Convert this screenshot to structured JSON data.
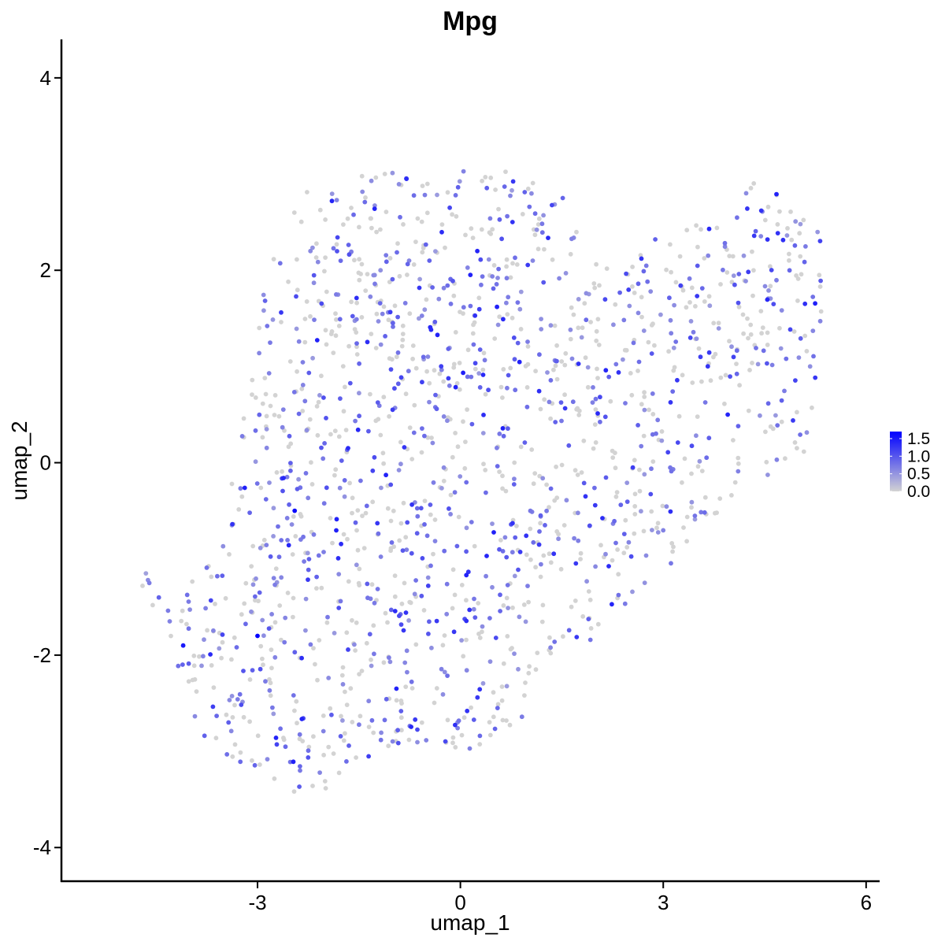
{
  "chart_data": {
    "type": "scatter",
    "title": "Mpg",
    "xlabel": "umap_1",
    "ylabel": "umap_2",
    "xlim": [
      -5.9,
      6.2
    ],
    "ylim": [
      -4.35,
      4.4
    ],
    "x_ticks": [
      -3,
      0,
      3,
      6
    ],
    "x_tick_labels": [
      "-3",
      "0",
      "3",
      "6"
    ],
    "y_ticks": [
      -4,
      -2,
      0,
      2,
      4
    ],
    "y_tick_labels": [
      "-4",
      "-2",
      "0",
      "2",
      "4"
    ],
    "grid": false,
    "point_count_estimate": 1600,
    "color_scale": {
      "low": "#d3d3d3",
      "high": "#0000ff",
      "min": 0.0,
      "max": 1.7,
      "ticks": [
        0.0,
        0.5,
        1.0,
        1.5
      ],
      "tick_labels": [
        "0.0",
        "0.5",
        "1.0",
        "1.5"
      ],
      "legend_position": "right"
    },
    "highlighted_points": [
      {
        "x": -3.0,
        "y": -1.8,
        "value": 1.7
      },
      {
        "x": -2.45,
        "y": -0.5,
        "value": 1.6
      },
      {
        "x": -4.1,
        "y": -1.9,
        "value": 1.5
      },
      {
        "x": -1.9,
        "y": 2.72,
        "value": 1.4
      },
      {
        "x": 0.25,
        "y": 2.2,
        "value": 1.4
      },
      {
        "x": 0.1,
        "y": -2.58,
        "value": 1.3
      },
      {
        "x": 4.45,
        "y": 2.62,
        "value": 1.3
      },
      {
        "x": 1.85,
        "y": -0.35,
        "value": 1.3
      },
      {
        "x": 2.55,
        "y": -0.05,
        "value": 1.2
      },
      {
        "x": 3.55,
        "y": 1.1,
        "value": 1.2
      }
    ]
  }
}
